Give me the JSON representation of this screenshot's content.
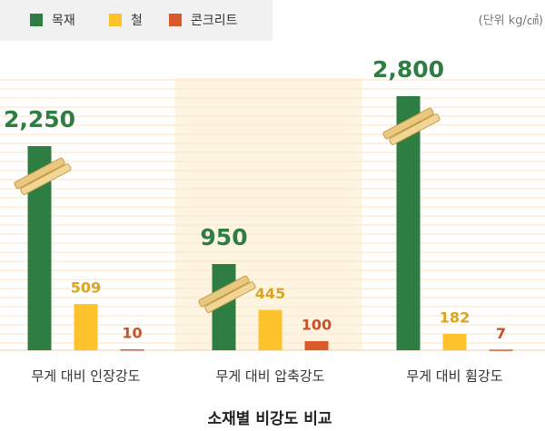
{
  "chart_data": {
    "type": "bar",
    "title": "소재별 비강도 비교",
    "unit": "(단위 kg/㎠)",
    "categories": [
      "무게 대비 인장강도",
      "무게 대비 압축강도",
      "무게 대비 휨강도"
    ],
    "series": [
      {
        "name": "목재",
        "color": "#2e7d43",
        "label_color": "#2e7d43",
        "values": [
          2250,
          950,
          2800
        ],
        "value_labels": [
          "2,250",
          "950",
          "2,800"
        ]
      },
      {
        "name": "철",
        "color": "#fec22d",
        "label_color": "#d9a421",
        "values": [
          509,
          445,
          182
        ]
      },
      {
        "name": "콘크리트",
        "color": "#d85a2b",
        "label_color": "#c9522a",
        "values": [
          10,
          100,
          7
        ]
      }
    ],
    "ylim": [
      0,
      3000
    ],
    "highlight_category": 1
  }
}
